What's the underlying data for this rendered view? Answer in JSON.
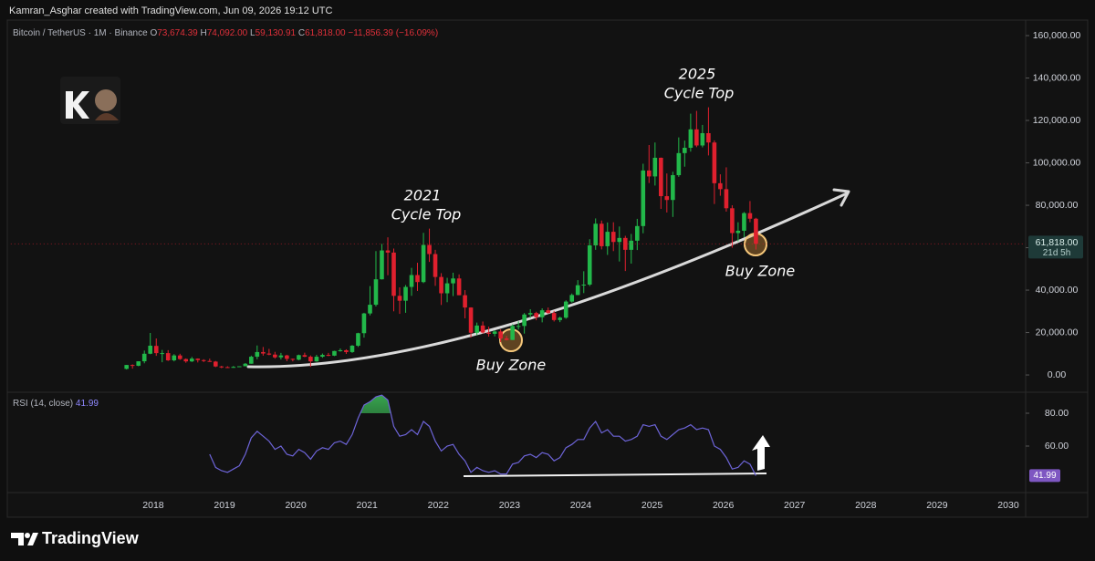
{
  "page": {
    "credit": "Kamran_Asghar created with TradingView.com, Jun 09, 2026 19:12 UTC",
    "brand": "TradingView"
  },
  "chart_data": [
    {
      "type": "candlestick",
      "legend": {
        "symbol": "Bitcoin / TetherUS · 1M · Binance",
        "items": [
          {
            "key": "O",
            "value": "73,674.39"
          },
          {
            "key": "H",
            "value": "74,092.00"
          },
          {
            "key": "L",
            "value": "59,130.91"
          },
          {
            "key": "C",
            "value": "61,818.00"
          }
        ],
        "change": "−11,856.39 (−16.09%)"
      },
      "last_price_label": "61,818.00",
      "countdown": "21d 5h",
      "up_color": "#22b84a",
      "down_color": "#e0202e",
      "annotations": [
        {
          "lines": [
            "2021",
            "Cycle Top"
          ]
        },
        {
          "lines": [
            "2025",
            "Cycle Top"
          ]
        },
        {
          "text": "Buy Zone"
        },
        {
          "text": "Buy Zone"
        }
      ],
      "x": [
        2017.625,
        2017.708,
        2017.792,
        2017.875,
        2017.958,
        2018.042,
        2018.125,
        2018.208,
        2018.292,
        2018.375,
        2018.458,
        2018.542,
        2018.625,
        2018.708,
        2018.792,
        2018.875,
        2018.958,
        2019.042,
        2019.125,
        2019.208,
        2019.292,
        2019.375,
        2019.458,
        2019.542,
        2019.625,
        2019.708,
        2019.792,
        2019.875,
        2019.958,
        2020.042,
        2020.125,
        2020.208,
        2020.292,
        2020.375,
        2020.458,
        2020.542,
        2020.625,
        2020.708,
        2020.792,
        2020.875,
        2020.958,
        2021.042,
        2021.125,
        2021.208,
        2021.292,
        2021.375,
        2021.458,
        2021.542,
        2021.625,
        2021.708,
        2021.792,
        2021.875,
        2021.958,
        2022.042,
        2022.125,
        2022.208,
        2022.292,
        2022.375,
        2022.458,
        2022.542,
        2022.625,
        2022.708,
        2022.792,
        2022.875,
        2022.958,
        2023.042,
        2023.125,
        2023.208,
        2023.292,
        2023.375,
        2023.458,
        2023.542,
        2023.625,
        2023.708,
        2023.792,
        2023.875,
        2023.958,
        2024.042,
        2024.125,
        2024.208,
        2024.292,
        2024.375,
        2024.458,
        2024.542,
        2024.625,
        2024.708,
        2024.792,
        2024.875,
        2024.958,
        2025.042,
        2025.125,
        2025.208,
        2025.292,
        2025.375,
        2025.458,
        2025.542,
        2025.625,
        2025.708,
        2025.792,
        2025.875,
        2025.958,
        2026.042,
        2026.125,
        2026.208,
        2026.292,
        2026.375,
        2026.458
      ],
      "open": [
        2870,
        4700,
        4340,
        6450,
        10000,
        13700,
        10300,
        10300,
        6900,
        9200,
        7500,
        6400,
        7700,
        7000,
        6600,
        6300,
        4000,
        3700,
        3400,
        3800,
        4100,
        5300,
        8600,
        10800,
        10100,
        9600,
        8300,
        9200,
        7600,
        7200,
        9350,
        8600,
        6400,
        8600,
        9450,
        9100,
        11300,
        11650,
        10800,
        13800,
        19700,
        29000,
        33100,
        45100,
        58700,
        57700,
        37300,
        35000,
        41500,
        47100,
        43800,
        61300,
        57000,
        46200,
        38500,
        43200,
        45500,
        37600,
        31800,
        19900,
        23300,
        20000,
        19400,
        20500,
        17200,
        16500,
        23100,
        23100,
        28500,
        29200,
        27200,
        30500,
        29200,
        25900,
        27000,
        34600,
        37700,
        42300,
        42600,
        61100,
        71300,
        60700,
        67500,
        62700,
        64600,
        59000,
        63300,
        70200,
        96400,
        93600,
        102400,
        84300,
        82500,
        94200,
        104600,
        107100,
        115800,
        108200,
        114000,
        109600,
        90400,
        87600,
        78600,
        66900,
        68000,
        76300,
        73674.39
      ],
      "high": [
        4740,
        4980,
        6470,
        11500,
        19800,
        17200,
        11800,
        11700,
        9800,
        10000,
        7800,
        8500,
        7800,
        7400,
        7700,
        6600,
        4300,
        4100,
        4200,
        4100,
        5600,
        9100,
        13900,
        13200,
        12300,
        10900,
        10400,
        9500,
        7700,
        9600,
        10500,
        9200,
        9500,
        10100,
        10400,
        11400,
        12500,
        12100,
        14100,
        19900,
        29300,
        41900,
        58400,
        61800,
        64900,
        59600,
        41300,
        42400,
        50500,
        52900,
        67000,
        69000,
        59000,
        48000,
        45800,
        48200,
        47400,
        40000,
        31900,
        24700,
        25200,
        22800,
        21100,
        21500,
        18400,
        23900,
        25300,
        29200,
        31000,
        29800,
        31400,
        31800,
        30200,
        27500,
        35200,
        38400,
        44700,
        48900,
        64000,
        73800,
        72800,
        71900,
        72000,
        70000,
        65600,
        66500,
        73600,
        99600,
        108400,
        109600,
        102500,
        95000,
        95800,
        112000,
        110500,
        123200,
        124500,
        117900,
        126200,
        110600,
        94600,
        97900,
        80000,
        72000,
        76800,
        82000,
        74092
      ],
      "low": [
        2580,
        2970,
        4110,
        5500,
        9800,
        9000,
        6000,
        6600,
        6400,
        7100,
        5750,
        6100,
        5900,
        6100,
        6200,
        3700,
        3200,
        3300,
        3400,
        3700,
        4100,
        5300,
        7400,
        9100,
        9300,
        7700,
        7300,
        6500,
        6400,
        6900,
        8400,
        3800,
        6200,
        8100,
        8900,
        8900,
        11000,
        9900,
        10400,
        13200,
        17600,
        28100,
        32300,
        45000,
        47000,
        30000,
        28800,
        29300,
        37300,
        39600,
        43300,
        53300,
        42000,
        33000,
        34300,
        37200,
        37600,
        26700,
        17600,
        18800,
        19500,
        18100,
        18200,
        15500,
        16300,
        16500,
        21400,
        19500,
        26900,
        25800,
        24800,
        28900,
        25200,
        24900,
        26500,
        34100,
        37600,
        38600,
        41900,
        59000,
        59200,
        56600,
        58400,
        53500,
        49000,
        52500,
        58900,
        66800,
        90500,
        89300,
        78300,
        76600,
        74500,
        93400,
        98200,
        105300,
        107400,
        107300,
        103500,
        80600,
        84500,
        77000,
        60000,
        63000,
        65000,
        72000,
        59130.91
      ],
      "close": [
        4700,
        4340,
        6450,
        10000,
        13800,
        10300,
        10300,
        6900,
        9200,
        7500,
        6400,
        7700,
        7000,
        6600,
        6300,
        4000,
        3700,
        3400,
        3800,
        4100,
        5300,
        8600,
        10800,
        10100,
        9600,
        8300,
        9200,
        7600,
        7200,
        9350,
        8600,
        6400,
        8600,
        9450,
        9100,
        11300,
        11650,
        10800,
        13800,
        19700,
        29000,
        33100,
        45100,
        58700,
        57700,
        37300,
        35000,
        41500,
        47100,
        43800,
        61300,
        57000,
        46200,
        38500,
        43200,
        45500,
        37600,
        31800,
        19900,
        23300,
        20000,
        19400,
        20500,
        17200,
        16500,
        23100,
        23100,
        28500,
        29200,
        27200,
        30500,
        29200,
        25900,
        27000,
        34600,
        37700,
        42300,
        42600,
        61100,
        71300,
        60700,
        67500,
        62700,
        64600,
        59000,
        63300,
        70200,
        96400,
        93600,
        102400,
        84300,
        82500,
        94200,
        104600,
        107100,
        115800,
        108200,
        114000,
        109600,
        90400,
        87600,
        78600,
        66900,
        68000,
        76300,
        73674.39,
        61818
      ],
      "xlim": [
        2016,
        2030.25
      ],
      "ylim": [
        -6000,
        165000
      ],
      "yticks": [
        {
          "value": 0,
          "label": "0.00"
        },
        {
          "value": 20000,
          "label": "20,000.00"
        },
        {
          "value": 40000,
          "label": "40,000.00"
        },
        {
          "value": 60000,
          "label": "60,000.00"
        },
        {
          "value": 80000,
          "label": "80,000.00"
        },
        {
          "value": 100000,
          "label": "100,000.00"
        },
        {
          "value": 120000,
          "label": "120,000.00"
        },
        {
          "value": 140000,
          "label": "140,000.00"
        },
        {
          "value": 160000,
          "label": "160,000.00"
        }
      ]
    },
    {
      "type": "line",
      "name": "RSI (14, close)",
      "current_label": "41.99",
      "color": "#6d64d8",
      "overbought_color": "#2e9d4a",
      "x": [
        2017.625,
        2017.708,
        2017.792,
        2017.875,
        2017.958,
        2018.042,
        2018.125,
        2018.208,
        2018.292,
        2018.375,
        2018.458,
        2018.542,
        2018.625,
        2018.708,
        2018.792,
        2018.875,
        2018.958,
        2019.042,
        2019.125,
        2019.208,
        2019.292,
        2019.375,
        2019.458,
        2019.542,
        2019.625,
        2019.708,
        2019.792,
        2019.875,
        2019.958,
        2020.042,
        2020.125,
        2020.208,
        2020.292,
        2020.375,
        2020.458,
        2020.542,
        2020.625,
        2020.708,
        2020.792,
        2020.875,
        2020.958,
        2021.042,
        2021.125,
        2021.208,
        2021.292,
        2021.375,
        2021.458,
        2021.542,
        2021.625,
        2021.708,
        2021.792,
        2021.875,
        2021.958,
        2022.042,
        2022.125,
        2022.208,
        2022.292,
        2022.375,
        2022.458,
        2022.542,
        2022.625,
        2022.708,
        2022.792,
        2022.875,
        2022.958,
        2023.042,
        2023.125,
        2023.208,
        2023.292,
        2023.375,
        2023.458,
        2023.542,
        2023.625,
        2023.708,
        2023.792,
        2023.875,
        2023.958,
        2024.042,
        2024.125,
        2024.208,
        2024.292,
        2024.375,
        2024.458,
        2024.542,
        2024.625,
        2024.708,
        2024.792,
        2024.875,
        2024.958,
        2025.042,
        2025.125,
        2025.208,
        2025.292,
        2025.375,
        2025.458,
        2025.542,
        2025.625,
        2025.708,
        2025.792,
        2025.875,
        2025.958,
        2026.042,
        2026.125,
        2026.208,
        2026.292,
        2026.375,
        2026.458
      ],
      "values": [
        null,
        null,
        null,
        null,
        null,
        null,
        null,
        null,
        null,
        null,
        null,
        null,
        null,
        null,
        55,
        47,
        45,
        44,
        46,
        48,
        55,
        65,
        69,
        66,
        63,
        58,
        60,
        55,
        54,
        58,
        56,
        52,
        57,
        59,
        58,
        62,
        63,
        61,
        67,
        77,
        85,
        87,
        90,
        91,
        88,
        72,
        66,
        67,
        70,
        67,
        75,
        72,
        63,
        57,
        60,
        61,
        55,
        51,
        44,
        47,
        45,
        44,
        45,
        43,
        43,
        49,
        50,
        54,
        55,
        53,
        56,
        55,
        51,
        53,
        59,
        61,
        64,
        64,
        71,
        75,
        68,
        70,
        66,
        66,
        63,
        64,
        66,
        73,
        72,
        73,
        66,
        64,
        67,
        70,
        71,
        73,
        70,
        71,
        70,
        60,
        58,
        53,
        46,
        47,
        51,
        49,
        41.99
      ],
      "overbought": 80,
      "xlim": [
        2016,
        2030.25
      ],
      "ylim": [
        30,
        92
      ],
      "yticks": [
        {
          "value": 60,
          "label": "60.00"
        },
        {
          "value": 80,
          "label": "80.00"
        }
      ],
      "xticks": [
        2018,
        2019,
        2020,
        2021,
        2022,
        2023,
        2024,
        2025,
        2026,
        2027,
        2028,
        2029,
        2030
      ],
      "grid": false
    }
  ]
}
